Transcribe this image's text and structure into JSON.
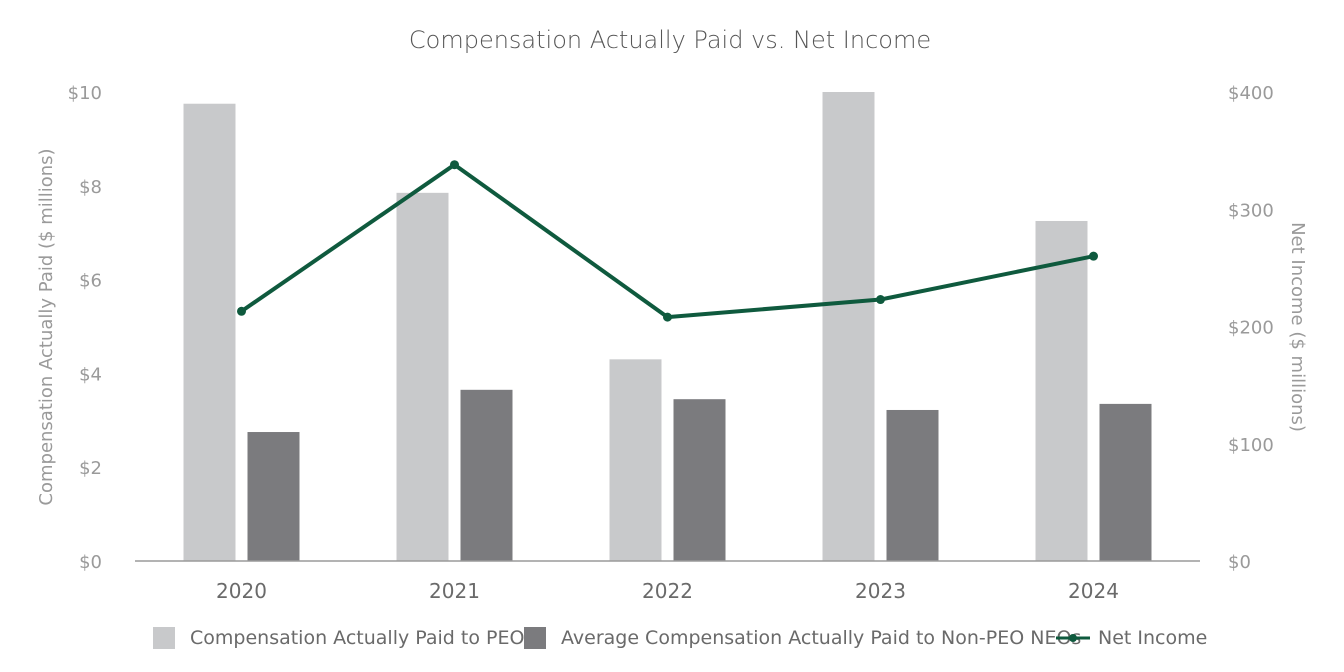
{
  "chart_data": {
    "type": "bar",
    "title": "Compensation Actually Paid vs. Net Income",
    "categories": [
      "2020",
      "2021",
      "2022",
      "2023",
      "2024"
    ],
    "series": [
      {
        "name": "Compensation Actually Paid to PEO",
        "type": "bar",
        "axis": "left",
        "color": "#c8c9cb",
        "values": [
          9.75,
          7.85,
          4.3,
          10.0,
          7.25
        ]
      },
      {
        "name": "Average Compensation Actually Paid to Non-PEO NEOs",
        "type": "bar",
        "axis": "left",
        "color": "#7b7b7e",
        "values": [
          2.75,
          3.65,
          3.45,
          3.22,
          3.35
        ]
      },
      {
        "name": "Net Income",
        "type": "line",
        "axis": "right",
        "color": "#0f5a3e",
        "values": [
          213,
          338,
          208,
          223,
          260
        ]
      }
    ],
    "y_left": {
      "label": "Compensation Actually Paid ($ millions)",
      "lim": [
        0,
        10
      ],
      "ticks": [
        "$0",
        "$2",
        "$4",
        "$6",
        "$8",
        "$10"
      ],
      "tick_values": [
        0,
        2,
        4,
        6,
        8,
        10
      ]
    },
    "y_right": {
      "label": "Net Income ($ millions)",
      "lim": [
        0,
        400
      ],
      "ticks": [
        "$0",
        "$100",
        "$200",
        "$300",
        "$400"
      ],
      "tick_values": [
        0,
        100,
        200,
        300,
        400
      ]
    },
    "grid": false,
    "legend_position": "bottom"
  }
}
